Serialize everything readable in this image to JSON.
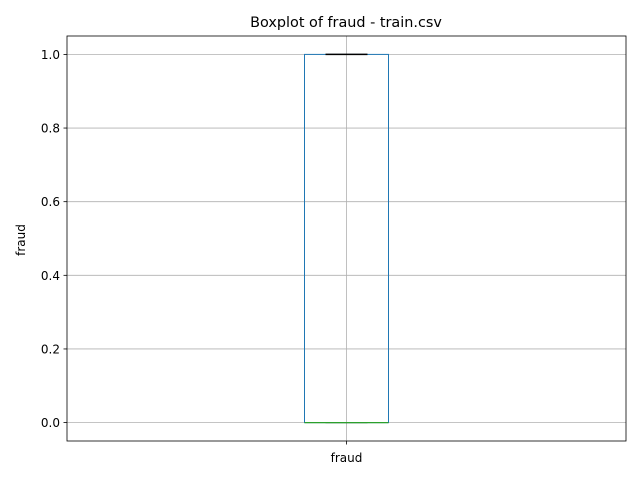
{
  "chart_data": {
    "type": "boxplot",
    "title": "Boxplot of fraud - train.csv",
    "xlabel": "",
    "ylabel": "fraud",
    "categories": [
      "fraud"
    ],
    "ylim": [
      -0.05,
      1.05
    ],
    "yticks": [
      0.0,
      0.2,
      0.4,
      0.6,
      0.8,
      1.0
    ],
    "ytick_labels": [
      "0.0",
      "0.2",
      "0.4",
      "0.6",
      "0.8",
      "1.0"
    ],
    "grid": true,
    "boxes": [
      {
        "category": "fraud",
        "whisker_low": 0.0,
        "q1": 0.0,
        "median": 0.0,
        "q3": 1.0,
        "whisker_high": 1.0
      }
    ],
    "colors": {
      "box": "#1f77b4",
      "median": "#2ca02c",
      "whisker": "#000000",
      "grid": "#b0b0b0",
      "axes": "#000000"
    }
  }
}
